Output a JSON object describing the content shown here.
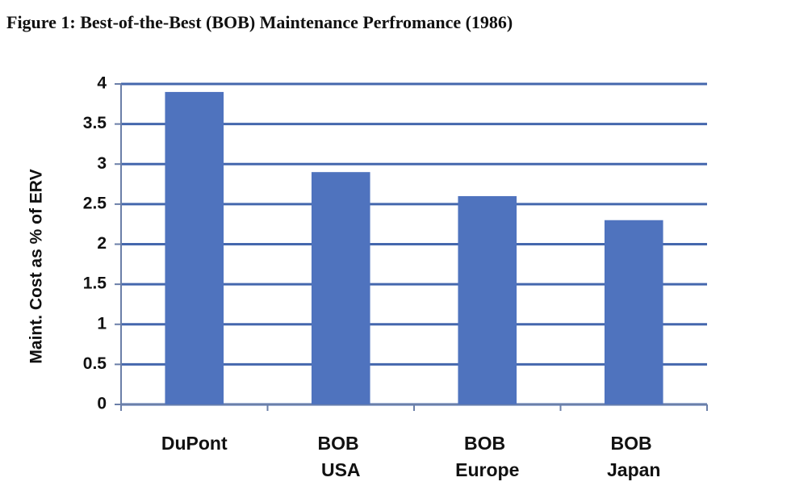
{
  "chart_data": {
    "type": "bar",
    "title": "Figure 1: Best-of-the-Best (BOB) Maintenance Perfromance (1986)",
    "y_label": "Maint. Cost as % of ERV",
    "categories": [
      "DuPont",
      "BOB USA",
      "BOB Europe",
      "BOB Japan"
    ],
    "values": [
      3.9,
      2.9,
      2.6,
      2.3
    ],
    "color": "#4f73be",
    "ylim": [
      0,
      4
    ],
    "yticks": [
      0,
      0.5,
      1,
      1.5,
      2,
      2.5,
      3,
      3.5,
      4
    ],
    "grid": true
  }
}
